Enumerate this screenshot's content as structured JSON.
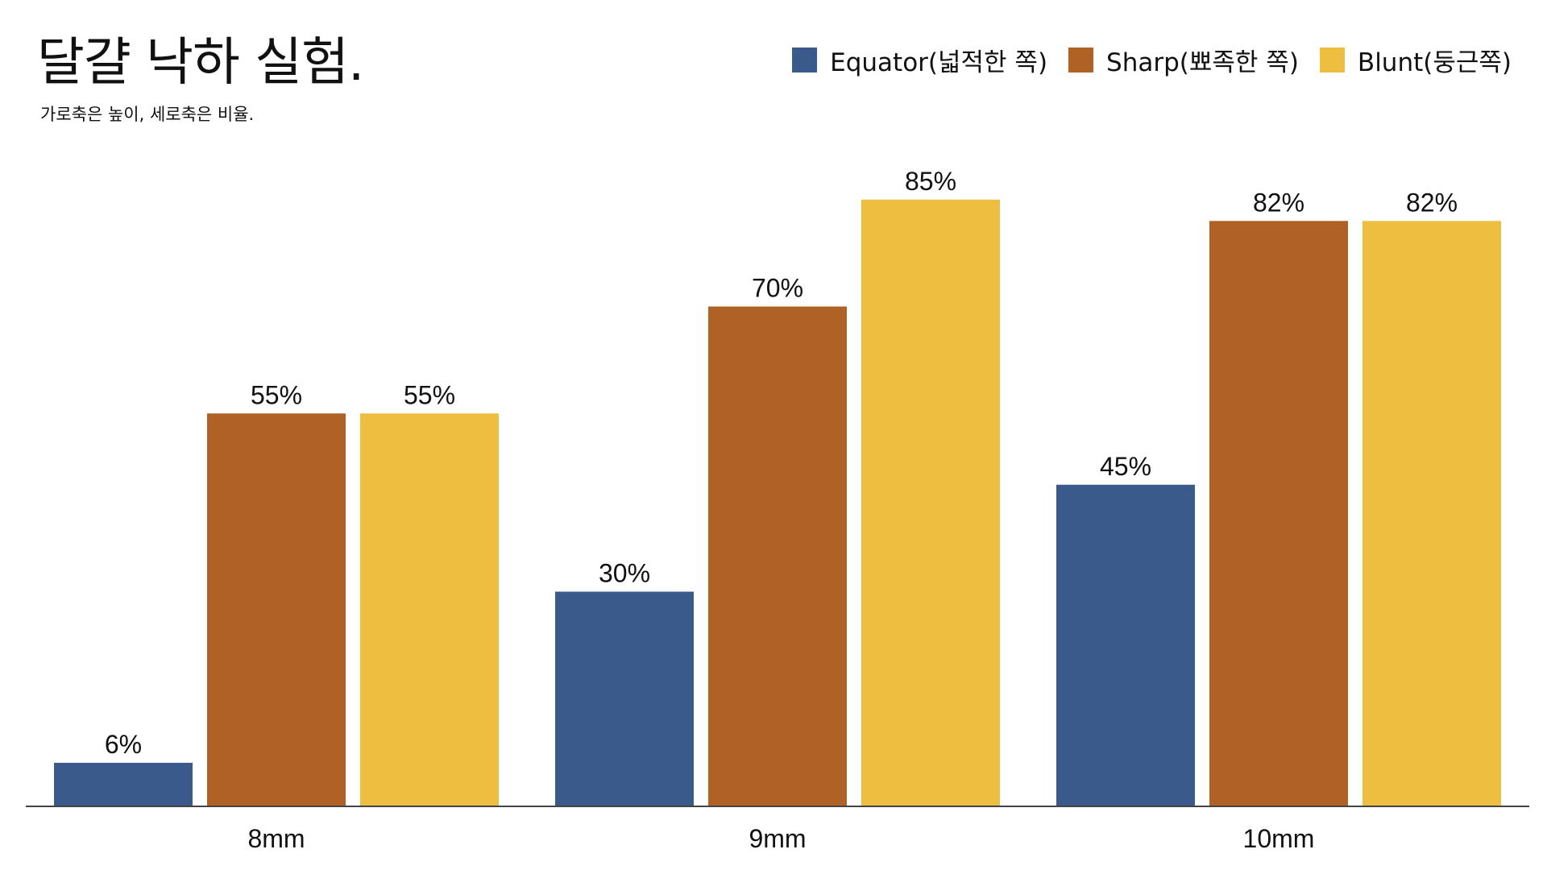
{
  "title": "달걀 낙하 실험.",
  "subtitle": "가로축은 높이, 세로축은 비율.",
  "chart_data": {
    "type": "bar",
    "title": "달걀 낙하 실험.",
    "subtitle": "가로축은 높이, 세로축은 비율.",
    "categories": [
      "8mm",
      "9mm",
      "10mm"
    ],
    "series": [
      {
        "name": "Equator(넓적한 쪽)",
        "color": "#3a5a8c",
        "values": [
          6,
          30,
          45
        ],
        "labels": [
          "6%",
          "30%",
          "45%"
        ]
      },
      {
        "name": "Sharp(뾰족한 쪽)",
        "color": "#b06126",
        "values": [
          55,
          70,
          82
        ],
        "labels": [
          "55%",
          "70%",
          "82%"
        ]
      },
      {
        "name": "Blunt(둥근쪽)",
        "color": "#eebe40",
        "values": [
          55,
          85,
          82
        ],
        "labels": [
          "55%",
          "85%",
          "82%"
        ]
      }
    ],
    "ylim": [
      0,
      100
    ],
    "grid": false,
    "legend": "top-right",
    "xlabel": "",
    "ylabel": ""
  }
}
